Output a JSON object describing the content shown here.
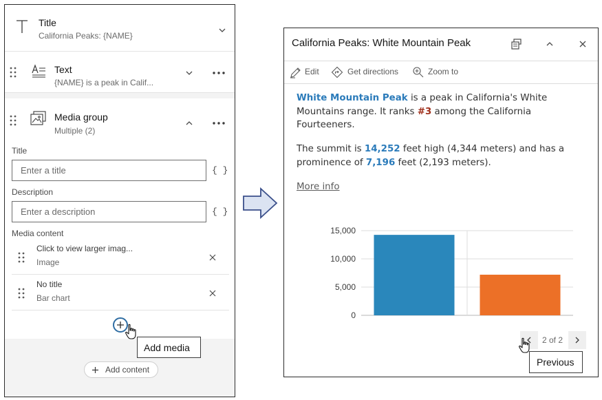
{
  "left_panel": {
    "title_card": {
      "title": "Title",
      "subtitle": "California Peaks: {NAME}"
    },
    "text_card": {
      "title": "Text",
      "subtitle": "{NAME} is a peak in Calif..."
    },
    "media_card": {
      "title": "Media group",
      "subtitle": "Multiple (2)",
      "title_label": "Title",
      "title_placeholder": "Enter a title",
      "description_label": "Description",
      "description_placeholder": "Enter a description",
      "braces": "{ }",
      "media_content_label": "Media content",
      "items": [
        {
          "title": "Click to view larger imag...",
          "type": "Image"
        },
        {
          "title": "No title",
          "type": "Bar chart"
        }
      ],
      "add_media_tooltip": "Add media"
    },
    "add_content_label": "Add content"
  },
  "popup": {
    "title": "California Peaks: White Mountain Peak",
    "actions": {
      "edit": "Edit",
      "directions": "Get directions",
      "zoom": "Zoom to"
    },
    "para1": {
      "peak_name": "White Mountain Peak",
      "text_a": " is a peak in California's White Mountains range. It ranks ",
      "rank": "#3",
      "text_b": " among the California Fourteeners."
    },
    "para2": {
      "text_a": "The summit is ",
      "elevation_ft": "14,252",
      "text_b": " feet high (4,344 meters) and has a prominence of ",
      "prominence_ft": "7,196",
      "text_c": " feet (2,193 meters)."
    },
    "more_info": "More info",
    "pager": {
      "text": "2 of 2",
      "tooltip": "Previous"
    }
  },
  "chart_data": {
    "type": "bar",
    "categories": [
      "",
      ""
    ],
    "values": [
      14252,
      7196
    ],
    "colors": [
      "#2a87bb",
      "#ec7027"
    ],
    "ylim": [
      0,
      15000
    ],
    "yticks": [
      "0",
      "5,000",
      "10,000",
      "15,000"
    ],
    "ytick_values": [
      0,
      5000,
      10000,
      15000
    ],
    "grid": true
  }
}
